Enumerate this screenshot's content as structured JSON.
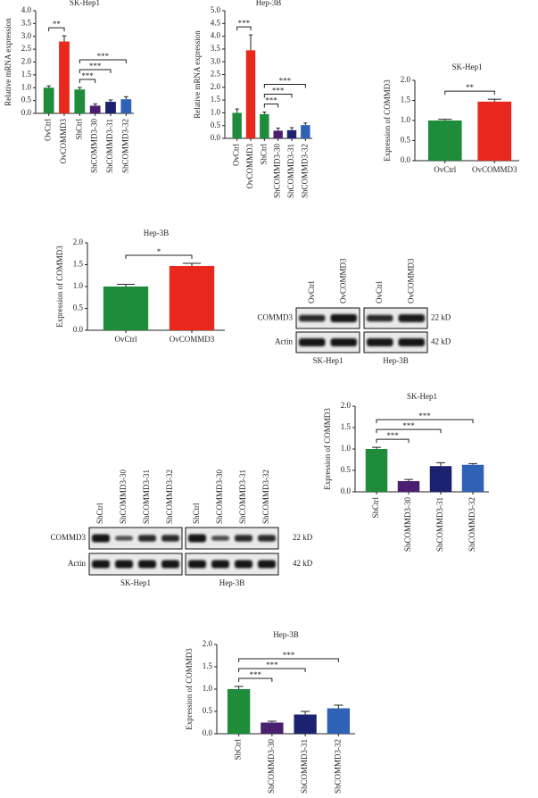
{
  "chart_data": [
    {
      "type": "bar",
      "title": "SK-Hep1",
      "y_label": "Relative mRNA expression",
      "categories": [
        "OvCtrl",
        "OvCOMMD3",
        "ShCtrl",
        "ShCOMMD3-30",
        "ShCOMMD3-31",
        "ShCOMMD3-32"
      ],
      "values": [
        1.0,
        2.8,
        0.93,
        0.3,
        0.45,
        0.55
      ],
      "errors": [
        0.07,
        0.22,
        0.08,
        0.07,
        0.07,
        0.1
      ],
      "colors": [
        "#1e8c3a",
        "#e8281c",
        "#1e8c3a",
        "#4b1f6f",
        "#1c2170",
        "#2f62b5"
      ],
      "ylim": [
        0,
        4
      ],
      "yticks": [
        {
          "value": 0,
          "label": "0.0"
        },
        0.5,
        {
          "value": 1,
          "label": "1.0"
        },
        1.5,
        {
          "value": 2,
          "label": "2.0"
        },
        2.5,
        {
          "value": 3,
          "label": "3.0"
        },
        3.5,
        {
          "value": 4,
          "label": "4.0"
        }
      ],
      "annotations": [
        {
          "between": [
            "OvCtrl",
            "OvCOMMD3"
          ],
          "label": "**"
        },
        {
          "between": [
            "ShCtrl",
            "ShCOMMD3-30"
          ],
          "label": "***"
        },
        {
          "between": [
            "ShCtrl",
            "ShCOMMD3-31"
          ],
          "label": "***"
        },
        {
          "between": [
            "ShCtrl",
            "ShCOMMD3-32"
          ],
          "label": "***"
        }
      ]
    },
    {
      "type": "bar",
      "title": "Hep-3B",
      "y_label": "Relative mRNA expression",
      "categories": [
        "OvCtrl",
        "OvCOMMD3",
        "ShCtrl",
        "ShCOMMD3-30",
        "ShCOMMD3-31",
        "ShCOMMD3-32"
      ],
      "values": [
        1.0,
        3.45,
        0.95,
        0.3,
        0.32,
        0.52
      ],
      "errors": [
        0.15,
        0.6,
        0.08,
        0.1,
        0.1,
        0.08
      ],
      "colors": [
        "#1e8c3a",
        "#e8281c",
        "#1e8c3a",
        "#4b1f6f",
        "#1c2170",
        "#2f62b5"
      ],
      "ylim": [
        0,
        5
      ],
      "yticks": [
        {
          "value": 0,
          "label": "0.0"
        },
        0.5,
        {
          "value": 1,
          "label": "1.0"
        },
        1.5,
        {
          "value": 2,
          "label": "2.0"
        },
        2.5,
        {
          "value": 3,
          "label": "3.0"
        },
        3.5,
        {
          "value": 4,
          "label": "4.0"
        },
        4.5,
        {
          "value": 5,
          "label": "5.0"
        }
      ],
      "annotations": [
        {
          "between": [
            "OvCtrl",
            "OvCOMMD3"
          ],
          "label": "***"
        },
        {
          "between": [
            "ShCtrl",
            "ShCOMMD3-30"
          ],
          "label": "***"
        },
        {
          "between": [
            "ShCtrl",
            "ShCOMMD3-31"
          ],
          "label": "***"
        },
        {
          "between": [
            "ShCtrl",
            "ShCOMMD3-32"
          ],
          "label": "***"
        }
      ]
    },
    {
      "type": "bar",
      "title": "SK-Hep1",
      "y_label": "Expression of COMMD3",
      "categories": [
        "OvCtrl",
        "OvCOMMD3"
      ],
      "values": [
        1.0,
        1.47
      ],
      "errors": [
        0.03,
        0.06
      ],
      "colors": [
        "#1e8c3a",
        "#e8281c"
      ],
      "ylim": [
        0,
        2
      ],
      "yticks": [
        {
          "value": 0,
          "label": "0.0"
        },
        0.5,
        {
          "value": 1,
          "label": "1.0"
        },
        1.5,
        {
          "value": 2,
          "label": "2.0"
        }
      ],
      "annotations": [
        {
          "between": [
            "OvCtrl",
            "OvCOMMD3"
          ],
          "label": "**"
        }
      ]
    },
    {
      "type": "bar",
      "title": "Hep-3B",
      "y_label": "Expression of COMMD3",
      "categories": [
        "OvCtrl",
        "OvCOMMD3"
      ],
      "values": [
        1.0,
        1.47
      ],
      "errors": [
        0.05,
        0.06
      ],
      "colors": [
        "#1e8c3a",
        "#e8281c"
      ],
      "ylim": [
        0,
        2
      ],
      "yticks": [
        {
          "value": 0,
          "label": "0.0"
        },
        0.5,
        {
          "value": 1,
          "label": "1.0"
        },
        1.5,
        {
          "value": 2,
          "label": "2.0"
        }
      ],
      "annotations": [
        {
          "between": [
            "OvCtrl",
            "OvCOMMD3"
          ],
          "label": "*"
        }
      ]
    },
    {
      "type": "bar",
      "title": "SK-Hep1",
      "y_label": "Expression of COMMD3",
      "categories": [
        "ShCtrl",
        "ShCOMMD3-30",
        "ShCOMMD3-31",
        "ShCOMMD3-32"
      ],
      "values": [
        1.0,
        0.25,
        0.6,
        0.63
      ],
      "errors": [
        0.04,
        0.04,
        0.08,
        0.03
      ],
      "colors": [
        "#1e8c3a",
        "#4b1f6f",
        "#1c2170",
        "#2f62b5"
      ],
      "ylim": [
        0,
        2
      ],
      "yticks": [
        {
          "value": 0,
          "label": "0.0"
        },
        0.5,
        {
          "value": 1,
          "label": "1.0"
        },
        1.5,
        {
          "value": 2,
          "label": "2.0"
        }
      ],
      "annotations": [
        {
          "between": [
            "ShCtrl",
            "ShCOMMD3-30"
          ],
          "label": "***"
        },
        {
          "between": [
            "ShCtrl",
            "ShCOMMD3-31"
          ],
          "label": "***"
        },
        {
          "between": [
            "ShCtrl",
            "ShCOMMD3-32"
          ],
          "label": "***"
        }
      ]
    },
    {
      "type": "bar",
      "title": "Hep-3B",
      "y_label": "Expression of COMMD3",
      "categories": [
        "ShCtrl",
        "ShCOMMD3-30",
        "ShCOMMD3-31",
        "ShCOMMD3-32"
      ],
      "values": [
        1.0,
        0.25,
        0.43,
        0.57
      ],
      "errors": [
        0.06,
        0.03,
        0.07,
        0.07
      ],
      "colors": [
        "#1e8c3a",
        "#4b1f6f",
        "#1c2170",
        "#2f62b5"
      ],
      "ylim": [
        0,
        2
      ],
      "yticks": [
        {
          "value": 0,
          "label": "0.0"
        },
        0.5,
        {
          "value": 1,
          "label": "1.0"
        },
        1.5,
        {
          "value": 2,
          "label": "2.0"
        }
      ],
      "annotations": [
        {
          "between": [
            "ShCtrl",
            "ShCOMMD3-30"
          ],
          "label": "***"
        },
        {
          "between": [
            "ShCtrl",
            "ShCOMMD3-31"
          ],
          "label": "***"
        },
        {
          "between": [
            "ShCtrl",
            "ShCOMMD3-32"
          ],
          "label": "***"
        }
      ]
    }
  ],
  "blots": [
    {
      "lanes": [
        "OvCtrl",
        "OvCOMMD3"
      ],
      "groups": [
        "SK-Hep1",
        "Hep-3B"
      ],
      "rows": [
        {
          "label": "COMMD3",
          "size": "22 kD"
        },
        {
          "label": "Actin",
          "size": "42 kD"
        }
      ]
    },
    {
      "lanes": [
        "ShCtrl",
        "ShCOMMD3-30",
        "ShCOMMD3-31",
        "ShCOMMD3-32"
      ],
      "groups": [
        "SK-Hep1",
        "Hep-3B"
      ],
      "rows": [
        {
          "label": "COMMD3",
          "size": "22 kD"
        },
        {
          "label": "Actin",
          "size": "42 kD"
        }
      ]
    }
  ]
}
